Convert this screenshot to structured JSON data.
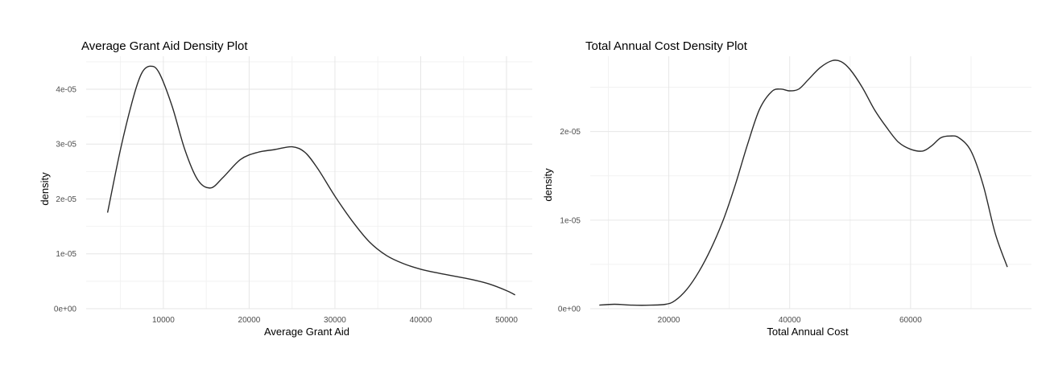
{
  "chart_data": [
    {
      "type": "line",
      "title": "Average Grant Aid Density Plot",
      "xlabel": "Average Grant Aid",
      "ylabel": "density",
      "xlim": [
        1000,
        53000
      ],
      "ylim": [
        0,
        4.6e-05
      ],
      "x_major_ticks": [
        10000,
        20000,
        30000,
        40000,
        50000
      ],
      "x_minor_ticks": [
        5000,
        15000,
        25000,
        35000,
        45000
      ],
      "x_tick_labels": [
        "10000",
        "20000",
        "30000",
        "40000",
        "50000"
      ],
      "y_major_ticks": [
        0,
        1e-05,
        2e-05,
        3e-05,
        4e-05
      ],
      "y_minor_ticks": [
        5e-06,
        1.5e-05,
        2.5e-05,
        3.5e-05,
        4.5e-05
      ],
      "y_tick_labels": [
        "0e+00",
        "1e-05",
        "2e-05",
        "3e-05",
        "4e-05"
      ],
      "grid": true,
      "series": [
        {
          "x": [
            3500,
            5000,
            6500,
            7500,
            8500,
            9500,
            11000,
            12500,
            14000,
            15500,
            17000,
            19000,
            21000,
            23000,
            25000,
            26500,
            28000,
            30000,
            32000,
            34000,
            36000,
            38000,
            40000,
            42000,
            44000,
            46000,
            48000,
            50000,
            51000
          ],
          "y": [
            1.75e-05,
            2.9e-05,
            3.85e-05,
            4.3e-05,
            4.42e-05,
            4.3e-05,
            3.7e-05,
            2.9e-05,
            2.35e-05,
            2.2e-05,
            2.4e-05,
            2.72e-05,
            2.85e-05,
            2.9e-05,
            2.95e-05,
            2.85e-05,
            2.55e-05,
            2.05e-05,
            1.6e-05,
            1.22e-05,
            9.7e-06,
            8.2e-06,
            7.2e-06,
            6.5e-06,
            5.9e-06,
            5.3e-06,
            4.5e-06,
            3.3e-06,
            2.5e-06
          ]
        }
      ]
    },
    {
      "type": "line",
      "title": "Total Annual Cost Density Plot",
      "xlabel": "Total Annual Cost",
      "ylabel": "density",
      "xlim": [
        7000,
        80000
      ],
      "ylim": [
        0,
        2.85e-05
      ],
      "x_major_ticks": [
        20000,
        40000,
        60000
      ],
      "x_minor_ticks": [
        10000,
        30000,
        50000,
        70000
      ],
      "x_tick_labels": [
        "20000",
        "40000",
        "60000"
      ],
      "y_major_ticks": [
        0,
        1e-05,
        2e-05
      ],
      "y_minor_ticks": [
        5e-06,
        1.5e-05,
        2.5e-05
      ],
      "y_tick_labels": [
        "0e+00",
        "1e-05",
        "2e-05"
      ],
      "grid": true,
      "series": [
        {
          "x": [
            8500,
            11000,
            14000,
            17000,
            19500,
            21000,
            23000,
            25000,
            27000,
            29000,
            31000,
            33000,
            35000,
            37000,
            38500,
            40000,
            41500,
            43000,
            45000,
            47000,
            48500,
            50000,
            52000,
            54000,
            56000,
            58000,
            60000,
            62000,
            63500,
            65000,
            66500,
            68000,
            70000,
            72000,
            74000,
            76000
          ],
          "y": [
            4e-07,
            5e-07,
            4e-07,
            4e-07,
            5e-07,
            9e-07,
            2.2e-06,
            4.2e-06,
            6.8e-06,
            1e-05,
            1.4e-05,
            1.85e-05,
            2.25e-05,
            2.45e-05,
            2.48e-05,
            2.46e-05,
            2.48e-05,
            2.58e-05,
            2.72e-05,
            2.8e-05,
            2.79e-05,
            2.7e-05,
            2.5e-05,
            2.25e-05,
            2.05e-05,
            1.88e-05,
            1.8e-05,
            1.78e-05,
            1.84e-05,
            1.93e-05,
            1.95e-05,
            1.93e-05,
            1.78e-05,
            1.4e-05,
            8.5e-06,
            4.7e-06
          ]
        }
      ]
    }
  ]
}
